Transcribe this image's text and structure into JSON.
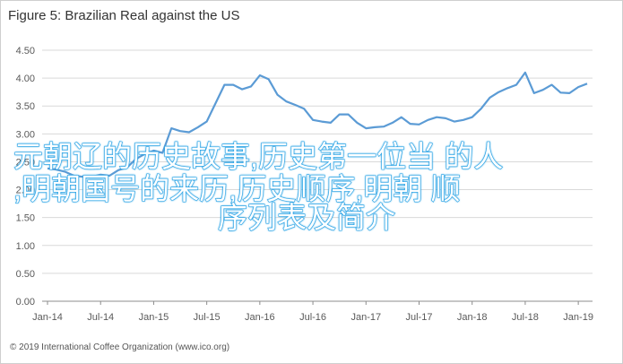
{
  "title": "Figure 5: Brazilian Real against the US",
  "footer": "© 2019 International Coffee Organization (www.ico.org)",
  "overlay": {
    "line1": "元朝辽的历史故事,历史第一位当 的人",
    "line2": ",明朝国号的来历,历史顺序,明朝 顺",
    "line3": "序列表及简介"
  },
  "colors": {
    "line": "#5b9bd5",
    "grid": "#d9d9d9",
    "axis": "#8c8c8c",
    "tick_text": "#595959"
  },
  "chart_data": {
    "type": "line",
    "title": "Figure 5: Brazilian Real against the US",
    "xlabel": "",
    "ylabel": "",
    "ylim": [
      0,
      4.5
    ],
    "yticks": [
      "0.00",
      "0.50",
      "1.00",
      "1.50",
      "2.00",
      "2.50",
      "3.00",
      "3.50",
      "4.00",
      "4.50"
    ],
    "xticks": [
      "Jan-14",
      "Jul-14",
      "Jan-15",
      "Jul-15",
      "Jan-16",
      "Jul-16",
      "Jan-17",
      "Jul-17",
      "Jan-18",
      "Jul-18",
      "Jan-19"
    ],
    "grid": true,
    "series": [
      {
        "values": [
          2.38,
          2.36,
          2.32,
          2.25,
          2.23,
          2.23,
          2.27,
          2.25,
          2.35,
          2.4,
          2.55,
          2.64,
          2.7,
          2.66,
          3.1,
          3.05,
          3.03,
          3.12,
          3.22,
          3.55,
          3.88,
          3.88,
          3.8,
          3.85,
          4.05,
          3.98,
          3.7,
          3.58,
          3.52,
          3.45,
          3.25,
          3.22,
          3.2,
          3.35,
          3.35,
          3.2,
          3.1,
          3.12,
          3.13,
          3.2,
          3.3,
          3.18,
          3.17,
          3.25,
          3.3,
          3.28,
          3.22,
          3.25,
          3.3,
          3.45,
          3.65,
          3.75,
          3.82,
          3.88,
          4.1,
          3.73,
          3.79,
          3.88,
          3.74,
          3.73,
          3.84,
          3.9
        ]
      }
    ]
  }
}
